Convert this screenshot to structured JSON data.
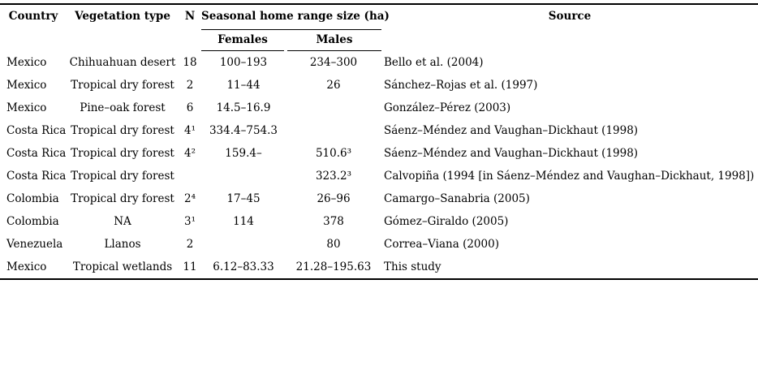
{
  "table": {
    "headers": {
      "country": "Country",
      "vegetation": "Vegetation type",
      "n": "N",
      "range_group": "Seasonal home range size (ha)",
      "females": "Females",
      "males": "Males",
      "source": "Source"
    },
    "rows": [
      {
        "country": "Mexico",
        "vegetation": "Chihuahuan desert",
        "n": "18",
        "females": "100–193",
        "males": "234–300",
        "source": "Bello et al. (2004)"
      },
      {
        "country": "Mexico",
        "vegetation": "Tropical dry forest",
        "n": "2",
        "females": "11–44",
        "males": "26",
        "source": "Sánchez–Rojas et al. (1997)"
      },
      {
        "country": "Mexico",
        "vegetation": "Pine–oak forest",
        "n": "6",
        "females": "14.5–16.9",
        "males": "",
        "source": "González–Pérez (2003)"
      },
      {
        "country": "Costa Rica",
        "vegetation": "Tropical dry forest",
        "n": "4¹",
        "females": "334.4–754.3",
        "males": "",
        "source": "Sáenz–Méndez and Vaughan–Dickhaut (1998)"
      },
      {
        "country": "Costa Rica",
        "vegetation": "Tropical dry forest",
        "n": "4²",
        "females": "159.4–",
        "males": "510.6³",
        "source": "Sáenz–Méndez and Vaughan–Dickhaut (1998)"
      },
      {
        "country": "Costa Rica",
        "vegetation": "Tropical dry forest",
        "n": "",
        "females": "",
        "males": "323.2³",
        "source": "Calvopiña (1994 [in Sáenz–Méndez and Vaughan–Dickhaut, 1998])"
      },
      {
        "country": "Colombia",
        "vegetation": "Tropical dry forest",
        "n": "2⁴",
        "females": "17–45",
        "males": "26–96",
        "source": "Camargo–Sanabria (2005)"
      },
      {
        "country": "Colombia",
        "vegetation": "NA",
        "n": "3¹",
        "females": "114",
        "males": "378",
        "source": "Gómez–Giraldo (2005)"
      },
      {
        "country": "Venezuela",
        "vegetation": "Llanos",
        "n": "2",
        "females": "",
        "males": "80",
        "source": "Correa–Viana (2000)"
      },
      {
        "country": "Mexico",
        "vegetation": "Tropical wetlands",
        "n": "11",
        "females": "6.12–83.33",
        "males": "21.28–195.63",
        "source": "This study"
      }
    ]
  }
}
